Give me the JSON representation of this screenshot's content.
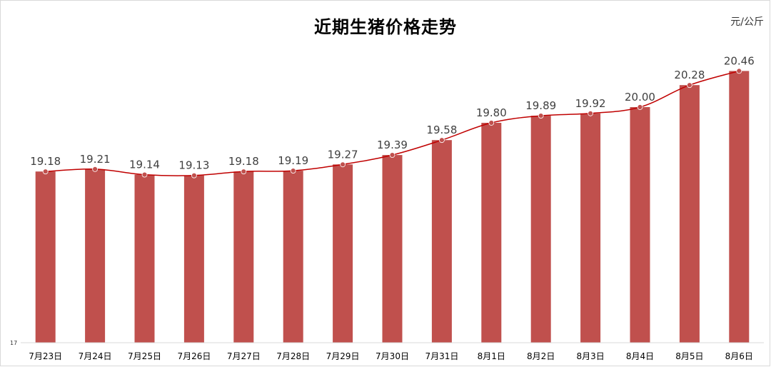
{
  "chart_data": {
    "type": "bar",
    "title": "近期生猪价格走势",
    "unit": "元/公斤",
    "categories": [
      "7月23日",
      "7月24日",
      "7月25日",
      "7月26日",
      "7月27日",
      "7月28日",
      "7月29日",
      "7月30日",
      "7月31日",
      "8月1日",
      "8月2日",
      "8月3日",
      "8月4日",
      "8月5日",
      "8月6日"
    ],
    "values": [
      19.18,
      19.21,
      19.14,
      19.13,
      19.18,
      19.19,
      19.27,
      19.39,
      19.58,
      19.8,
      19.89,
      19.92,
      20.0,
      20.28,
      20.46
    ],
    "value_labels": [
      "19.18",
      "19.21",
      "19.14",
      "19.13",
      "19.18",
      "19.19",
      "19.27",
      "19.39",
      "19.58",
      "19.80",
      "19.89",
      "19.92",
      "20.00",
      "20.28",
      "20.46"
    ],
    "overlay_line": true,
    "ylim": [
      17,
      20.6
    ],
    "y_tick_labels": [
      "17"
    ],
    "grid": false,
    "colors": {
      "bar": "#c0504d",
      "line": "#c00000",
      "marker": "#c0504d"
    }
  }
}
